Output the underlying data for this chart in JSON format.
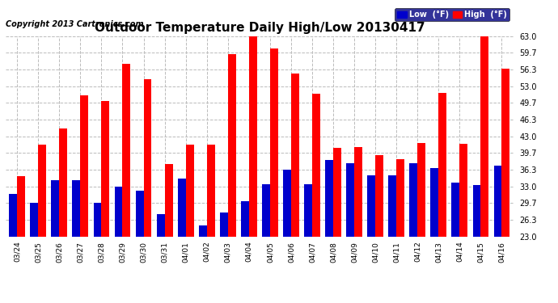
{
  "title": "Outdoor Temperature Daily High/Low 20130417",
  "copyright": "Copyright 2013 Cartronics.com",
  "dates": [
    "03/24",
    "03/25",
    "03/26",
    "03/27",
    "03/28",
    "03/29",
    "03/30",
    "03/31",
    "04/01",
    "04/02",
    "04/03",
    "04/04",
    "04/05",
    "04/06",
    "04/07",
    "04/08",
    "04/09",
    "04/10",
    "04/11",
    "04/12",
    "04/13",
    "04/14",
    "04/15",
    "04/16"
  ],
  "high": [
    35.0,
    41.3,
    44.5,
    51.2,
    50.0,
    57.5,
    54.5,
    37.5,
    41.3,
    41.3,
    59.5,
    63.0,
    60.5,
    55.5,
    51.5,
    40.7,
    40.8,
    39.3,
    38.5,
    41.7,
    51.7,
    41.5,
    63.0,
    56.5
  ],
  "low": [
    31.5,
    29.7,
    34.3,
    34.3,
    29.7,
    33.0,
    32.2,
    27.5,
    34.5,
    25.2,
    27.7,
    30.0,
    33.5,
    36.3,
    33.5,
    38.2,
    37.7,
    35.2,
    35.2,
    37.7,
    36.7,
    33.8,
    33.2,
    37.2
  ],
  "high_color": "#ff0000",
  "low_color": "#0000cc",
  "ylim": [
    23.0,
    63.0
  ],
  "yticks": [
    23.0,
    26.3,
    29.7,
    33.0,
    36.3,
    39.7,
    43.0,
    46.3,
    49.7,
    53.0,
    56.3,
    59.7,
    63.0
  ],
  "bg_color": "#ffffff",
  "grid_color": "#bbbbbb",
  "title_fontsize": 11,
  "copyright_fontsize": 7,
  "legend_low_label": "Low  (°F)",
  "legend_high_label": "High  (°F)",
  "bar_width": 0.38
}
